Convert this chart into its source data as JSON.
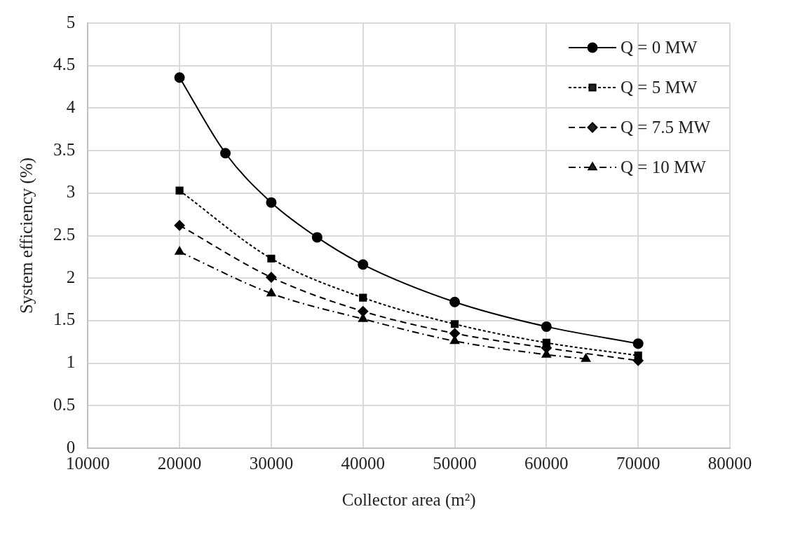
{
  "chart_data": {
    "type": "line",
    "xlabel": "Collector area (m²)",
    "ylabel": "System efficiency (%)",
    "xlim": [
      10000,
      80000
    ],
    "xticks": [
      10000,
      20000,
      30000,
      40000,
      50000,
      60000,
      70000,
      80000
    ],
    "ylim": [
      0,
      5
    ],
    "yticks": [
      0,
      0.5,
      1,
      1.5,
      2,
      2.5,
      3,
      3.5,
      4,
      4.5,
      5
    ],
    "grid": true,
    "legend": "top right",
    "series": [
      {
        "name": "Q = 0 MW",
        "color": "#000000",
        "marker": "circle",
        "line_style": "solid",
        "x": [
          20000,
          25000,
          30000,
          35000,
          40000,
          50000,
          60000,
          70000
        ],
        "values": [
          4.36,
          3.47,
          2.89,
          2.48,
          2.16,
          1.72,
          1.43,
          1.23
        ]
      },
      {
        "name": "Q = 5 MW",
        "color": "#000000",
        "marker": "square",
        "line_style": "dotted",
        "x": [
          20000,
          30000,
          40000,
          50000,
          60000,
          70000
        ],
        "values": [
          3.03,
          2.23,
          1.77,
          1.46,
          1.24,
          1.09
        ]
      },
      {
        "name": "Q = 7.5 MW",
        "color": "#000000",
        "marker": "diamond",
        "line_style": "dashed",
        "x": [
          20000,
          30000,
          40000,
          50000,
          60000,
          70000
        ],
        "values": [
          2.62,
          2.01,
          1.61,
          1.35,
          1.18,
          1.03
        ]
      },
      {
        "name": "Q = 10 MW",
        "color": "#000000",
        "marker": "triangle",
        "line_style": "dashdot",
        "x": [
          20000,
          30000,
          40000,
          50000,
          60000,
          64300
        ],
        "values": [
          2.31,
          1.82,
          1.52,
          1.26,
          1.1,
          1.05
        ]
      }
    ]
  }
}
